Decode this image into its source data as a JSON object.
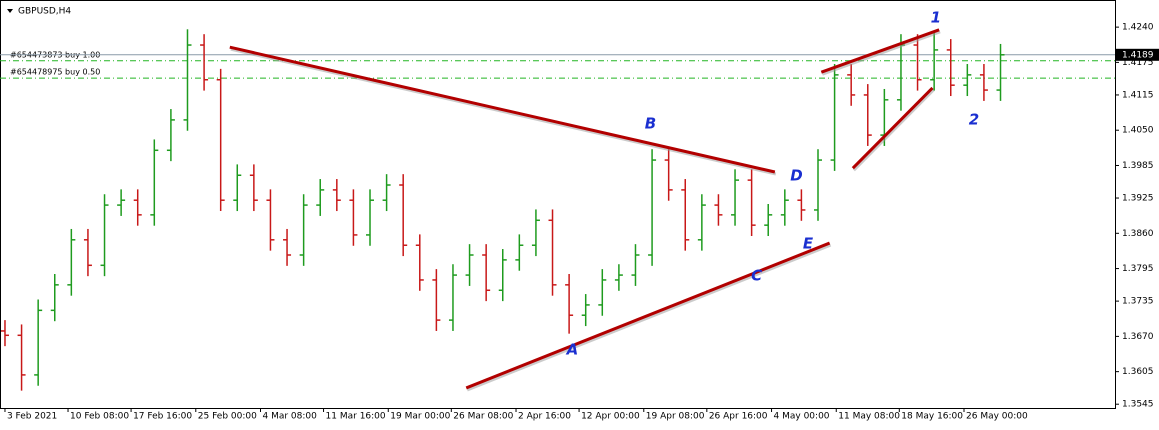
{
  "chart_data": {
    "type": "ohlc",
    "title": "GBPUSD,H4",
    "open": [
      1.368,
      1.3672,
      1.3599,
      1.3718,
      1.3765,
      1.3848,
      1.3801,
      1.3912,
      1.3921,
      1.3894,
      1.4013,
      1.4069,
      1.4207,
      1.4143,
      1.3921,
      1.3967,
      1.3921,
      1.3848,
      1.382,
      1.3912,
      1.394,
      1.3921,
      1.3857,
      1.3921,
      1.3949,
      1.3838,
      1.3774,
      1.37,
      1.3783,
      1.382,
      1.3755,
      1.3811,
      1.3838,
      1.3884,
      1.3765,
      1.3709,
      1.3728,
      1.3774,
      1.3783,
      1.382,
      1.3995,
      1.394,
      1.3848,
      1.3912,
      1.3894,
      1.3958,
      1.3875,
      1.3894,
      1.3921,
      1.3903,
      1.3995,
      1.4152,
      1.4115,
      1.4041,
      1.4106,
      1.4207,
      1.4143,
      1.4198,
      1.4133,
      1.4152,
      1.4124
    ],
    "high": [
      1.37,
      1.3692,
      1.3738,
      1.3785,
      1.3868,
      1.3868,
      1.3932,
      1.3941,
      1.3941,
      1.4033,
      1.4089,
      1.4236,
      1.4227,
      1.4163,
      1.3987,
      1.3987,
      1.3941,
      1.3868,
      1.3932,
      1.396,
      1.396,
      1.3941,
      1.3941,
      1.3969,
      1.3969,
      1.3858,
      1.3794,
      1.3803,
      1.384,
      1.384,
      1.3831,
      1.3858,
      1.3904,
      1.3904,
      1.3785,
      1.3748,
      1.3794,
      1.3803,
      1.384,
      1.4015,
      1.4015,
      1.396,
      1.3932,
      1.3932,
      1.3978,
      1.3978,
      1.3914,
      1.3941,
      1.3941,
      1.4015,
      1.4172,
      1.4172,
      1.4135,
      1.4126,
      1.4227,
      1.4227,
      1.4232,
      1.4218,
      1.4172,
      1.4172,
      1.4209
    ],
    "low": [
      1.3652,
      1.357,
      1.3579,
      1.3698,
      1.3745,
      1.3781,
      1.3781,
      1.3892,
      1.3874,
      1.3874,
      1.3993,
      1.4049,
      1.4123,
      1.3901,
      1.3901,
      1.3901,
      1.3828,
      1.38,
      1.38,
      1.3892,
      1.3901,
      1.3837,
      1.3837,
      1.3901,
      1.3818,
      1.3754,
      1.368,
      1.368,
      1.3763,
      1.3735,
      1.3735,
      1.3791,
      1.3818,
      1.3745,
      1.3675,
      1.3689,
      1.3708,
      1.3754,
      1.3763,
      1.38,
      1.392,
      1.3828,
      1.3828,
      1.3874,
      1.3874,
      1.3855,
      1.3855,
      1.3874,
      1.3883,
      1.3883,
      1.3975,
      1.4095,
      1.4021,
      1.4021,
      1.4086,
      1.4123,
      1.4123,
      1.4113,
      1.4113,
      1.4104,
      1.4104
    ],
    "close": [
      1.3672,
      1.3599,
      1.3718,
      1.3765,
      1.3848,
      1.3801,
      1.3912,
      1.3921,
      1.3894,
      1.4013,
      1.4069,
      1.4207,
      1.4143,
      1.3921,
      1.3967,
      1.3921,
      1.3848,
      1.382,
      1.3912,
      1.394,
      1.3921,
      1.3857,
      1.3921,
      1.3949,
      1.3838,
      1.3774,
      1.37,
      1.3783,
      1.382,
      1.3755,
      1.3811,
      1.3838,
      1.3884,
      1.3765,
      1.3709,
      1.3728,
      1.3774,
      1.3783,
      1.382,
      1.3995,
      1.394,
      1.3848,
      1.3912,
      1.3894,
      1.3958,
      1.3875,
      1.3894,
      1.3921,
      1.3903,
      1.3995,
      1.4152,
      1.4115,
      1.4041,
      1.4106,
      1.4207,
      1.4143,
      1.4198,
      1.4133,
      1.4152,
      1.4124,
      1.4189
    ],
    "up_color": "#1e9b1e",
    "down_color": "#c81818",
    "xlim": [
      -0.3,
      66.9
    ],
    "xticks": [
      {
        "value": 0,
        "label": "3 Feb 2021"
      },
      {
        "value": 3.8,
        "label": "10 Feb 08:00"
      },
      {
        "value": 7.6,
        "label": "17 Feb 16:00"
      },
      {
        "value": 11.5,
        "label": "25 Feb 00:00"
      },
      {
        "value": 15.4,
        "label": "4 Mar 08:00"
      },
      {
        "value": 19.2,
        "label": "11 Mar 16:00"
      },
      {
        "value": 23.1,
        "label": "19 Mar 00:00"
      },
      {
        "value": 26.9,
        "label": "26 Mar 08:00"
      },
      {
        "value": 30.8,
        "label": "2 Apr 16:00"
      },
      {
        "value": 34.6,
        "label": "12 Apr 00:00"
      },
      {
        "value": 38.5,
        "label": "19 Apr 08:00"
      },
      {
        "value": 42.3,
        "label": "26 Apr 16:00"
      },
      {
        "value": 46.2,
        "label": "4 May 00:00"
      },
      {
        "value": 50.1,
        "label": "11 May 08:00"
      },
      {
        "value": 53.9,
        "label": "18 May 16:00"
      },
      {
        "value": 57.8,
        "label": "26 May 00:00"
      }
    ],
    "ylim": [
      1.3538,
      1.429
    ],
    "yticks": [
      {
        "value": 1.424,
        "label": "1.4240"
      },
      1.4175,
      1.4115,
      {
        "value": 1.405,
        "label": "1.4050"
      },
      1.3985,
      1.3925,
      {
        "value": 1.386,
        "label": "1.3860"
      },
      1.3795,
      1.3735,
      {
        "value": 1.367,
        "label": "1.3670"
      },
      1.3605,
      1.3545
    ],
    "grid": false,
    "bid": 1.4189,
    "orders": [
      {
        "label": "#654473873 buy 1.00",
        "price": 1.4178
      },
      {
        "label": "#654478975 buy 0.50",
        "price": 1.4146
      }
    ],
    "order_color": "#22b522",
    "trendline_color": "#b20000",
    "trendlines": [
      {
        "x": [
          13.55,
          46.4
        ],
        "y": [
          1.4203,
          1.3973
        ]
      },
      {
        "x": [
          27.8,
          49.7
        ],
        "y": [
          1.3575,
          1.3842
        ]
      },
      {
        "x": [
          49.2,
          56.3
        ],
        "y": [
          1.4157,
          1.4235
        ]
      },
      {
        "x": [
          51.1,
          55.9
        ],
        "y": [
          1.398,
          1.4128
        ]
      }
    ],
    "wave_color": "#1a2fd0",
    "wave_labels": [
      {
        "text": "1",
        "x": 56.1,
        "y": 1.4257
      },
      {
        "text": "2",
        "x": 58.4,
        "y": 1.4069
      },
      {
        "text": "A",
        "x": 34.2,
        "y": 1.3645
      },
      {
        "text": "B",
        "x": 38.9,
        "y": 1.4061
      },
      {
        "text": "C",
        "x": 45.3,
        "y": 1.3781
      },
      {
        "text": "D",
        "x": 47.7,
        "y": 1.3966
      },
      {
        "text": "E",
        "x": 48.4,
        "y": 1.384
      }
    ]
  }
}
